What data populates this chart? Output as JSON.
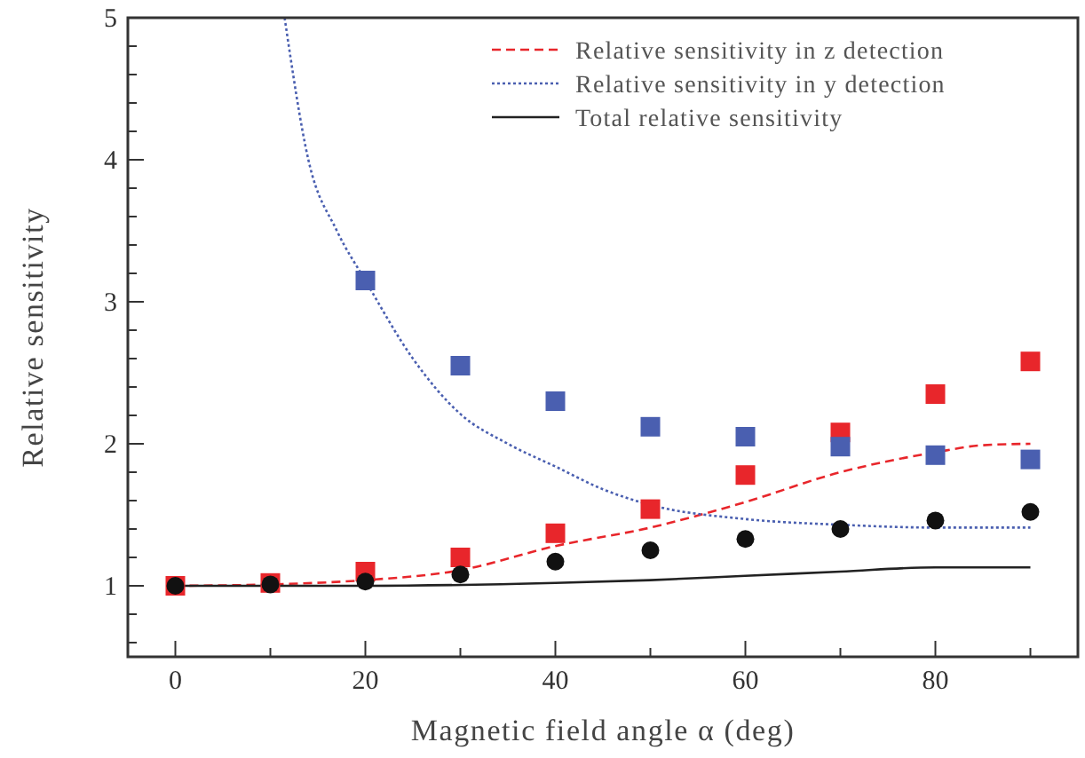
{
  "chart_data": {
    "type": "line",
    "xlabel": "Magnetic field angle α (deg)",
    "ylabel": "Relative sensitivity",
    "xlim": [
      -5,
      95
    ],
    "ylim": [
      0.5,
      5
    ],
    "xticks": [
      0,
      {
        "value": 10,
        "label": null
      },
      20,
      {
        "value": 30,
        "label": null
      },
      40,
      {
        "value": 50,
        "label": null
      },
      60,
      {
        "value": 70,
        "label": null
      },
      80,
      {
        "value": 90,
        "label": null
      }
    ],
    "yticks": [
      {
        "value": 0.6,
        "label": null
      },
      {
        "value": 0.8,
        "label": null
      },
      1,
      {
        "value": 1.2,
        "label": null
      },
      {
        "value": 1.4,
        "label": null
      },
      {
        "value": 1.6,
        "label": null
      },
      {
        "value": 1.8,
        "label": null
      },
      2,
      {
        "value": 2.2,
        "label": null
      },
      {
        "value": 2.4,
        "label": null
      },
      {
        "value": 2.6,
        "label": null
      },
      {
        "value": 2.8,
        "label": null
      },
      3,
      {
        "value": 3.2,
        "label": null
      },
      {
        "value": 3.4,
        "label": null
      },
      {
        "value": 3.6,
        "label": null
      },
      {
        "value": 3.8,
        "label": null
      },
      4,
      {
        "value": 4.2,
        "label": null
      },
      {
        "value": 4.4,
        "label": null
      },
      {
        "value": 4.6,
        "label": null
      },
      {
        "value": 4.8,
        "label": null
      },
      5
    ],
    "grid": false,
    "legend": "top right",
    "series": [
      {
        "name": "Relative sensitivity in z detection",
        "line_style": "dashed",
        "color": "#e8262b",
        "x": [
          0,
          10,
          20,
          30,
          40,
          50,
          60,
          70,
          80,
          85,
          90
        ],
        "values": [
          1,
          1.01,
          1.04,
          1.11,
          1.28,
          1.41,
          1.59,
          1.8,
          1.94,
          1.99,
          2.0
        ]
      },
      {
        "name": "Relative sensitivity in y detection",
        "line_style": "dotted",
        "color": "#4a5fb0",
        "x": [
          11.5,
          14,
          17,
          20,
          25,
          30,
          35,
          40,
          45,
          50,
          60,
          70,
          80,
          90
        ],
        "values": [
          5,
          4,
          3.5,
          3.15,
          2.6,
          2.21,
          2.0,
          1.84,
          1.68,
          1.57,
          1.47,
          1.43,
          1.41,
          1.41
        ]
      },
      {
        "name": "Total relative sensitivity",
        "line_style": "solid",
        "color": "#222222",
        "x": [
          0,
          20,
          40,
          50,
          60,
          70,
          80,
          90
        ],
        "values": [
          1,
          1.0,
          1.02,
          1.04,
          1.07,
          1.1,
          1.13,
          1.13
        ]
      },
      {
        "type": "scatter",
        "marker": "square",
        "color": "#e8262b",
        "x": [
          0,
          10,
          20,
          30,
          40,
          50,
          60,
          70,
          80,
          90
        ],
        "values": [
          1,
          1.02,
          1.1,
          1.2,
          1.37,
          1.54,
          1.78,
          2.08,
          2.35,
          2.58
        ]
      },
      {
        "type": "scatter",
        "marker": "square",
        "color": "#4a5fb0",
        "x": [
          20,
          30,
          40,
          50,
          60,
          70,
          80,
          90
        ],
        "values": [
          3.15,
          2.55,
          2.3,
          2.12,
          2.05,
          1.98,
          1.92,
          1.89
        ]
      },
      {
        "type": "scatter",
        "marker": "circle",
        "color": "#111111",
        "x": [
          0,
          10,
          20,
          30,
          40,
          50,
          60,
          70,
          80,
          90
        ],
        "values": [
          1,
          1.01,
          1.03,
          1.08,
          1.17,
          1.25,
          1.33,
          1.4,
          1.46,
          1.52
        ]
      }
    ]
  }
}
